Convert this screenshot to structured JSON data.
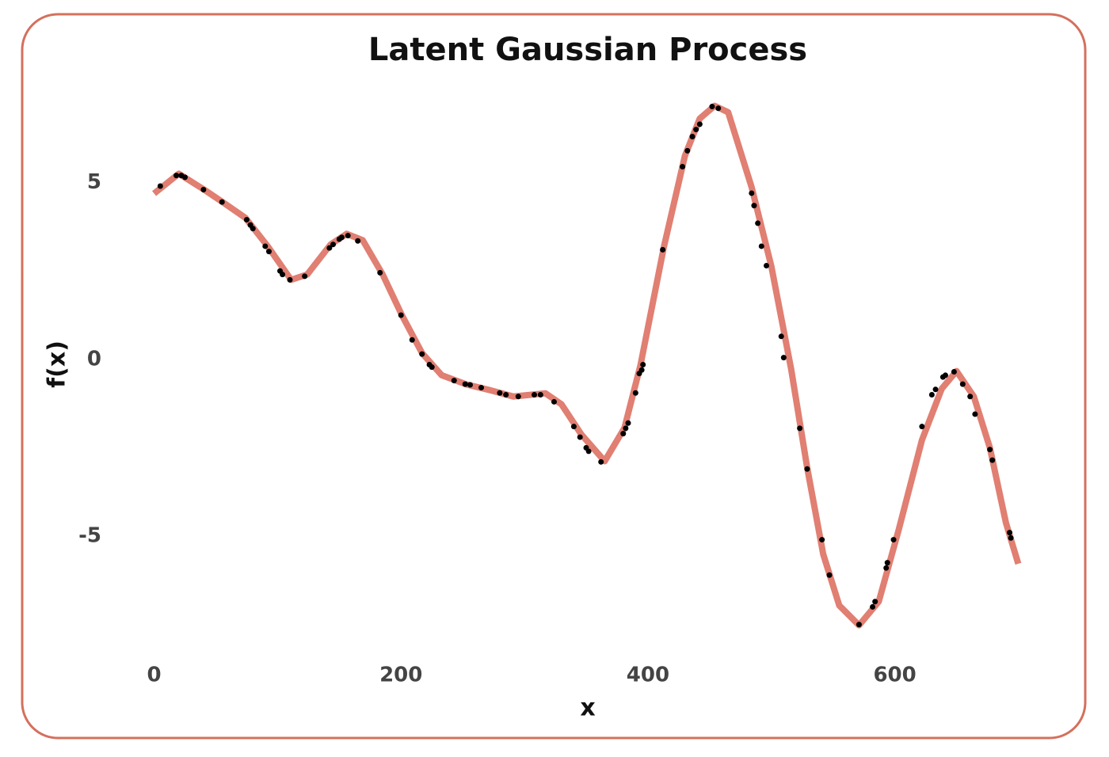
{
  "chart_data": {
    "type": "line",
    "title": "Latent Gaussian Process",
    "x_label": "x",
    "y_label": "f(x)",
    "xlim": [
      -35,
      735
    ],
    "ylim": [
      -8.2,
      7.7
    ],
    "xticks": [
      0,
      200,
      400,
      600
    ],
    "yticks": [
      -5,
      0,
      5
    ],
    "grid": false,
    "frame_color": "#d4705e",
    "series": [
      {
        "type": "line",
        "color": "#e07f72",
        "x": [
          0,
          20,
          40.5,
          55,
          74,
          92,
          111,
          124,
          143,
          156,
          169,
          185,
          201,
          217,
          233,
          253,
          272,
          291,
          317,
          330,
          346,
          365,
          381,
          394,
          413,
          430,
          442,
          454,
          465,
          484,
          500,
          516,
          529,
          542,
          555,
          571,
          587,
          603,
          622,
          638,
          650,
          664,
          677,
          690,
          700
        ],
        "values": [
          4.69,
          5.25,
          4.8,
          4.46,
          4.0,
          3.2,
          2.25,
          2.4,
          3.25,
          3.55,
          3.37,
          2.41,
          1.23,
          0.18,
          -0.45,
          -0.71,
          -0.87,
          -1.05,
          -0.96,
          -1.27,
          -2.12,
          -2.88,
          -1.94,
          -0.16,
          3.19,
          5.76,
          6.81,
          7.17,
          6.99,
          4.87,
          2.63,
          -0.27,
          -3.06,
          -5.51,
          -6.96,
          -7.52,
          -6.85,
          -4.84,
          -2.28,
          -0.83,
          -0.33,
          -1.05,
          -2.5,
          -4.62,
          -5.78
        ]
      },
      {
        "type": "scatter",
        "color": "#000000",
        "x": [
          5,
          18,
          22,
          25,
          40,
          55,
          75,
          78,
          80,
          90,
          93,
          102,
          104,
          110,
          122,
          142,
          145,
          150,
          152,
          157,
          165,
          183,
          200,
          209,
          217,
          223,
          225,
          243,
          252,
          256,
          265,
          280,
          285,
          295,
          308,
          313,
          324,
          340,
          345,
          350,
          352,
          362,
          380,
          382,
          384,
          390,
          393,
          395,
          396,
          412,
          428,
          432,
          436,
          439,
          442,
          452,
          457,
          484,
          486,
          489,
          492,
          496,
          508,
          510,
          523,
          529,
          541,
          547,
          571,
          582,
          584,
          593,
          594,
          599,
          622,
          630,
          633,
          639,
          641,
          648,
          655,
          661,
          665,
          677,
          679,
          693,
          694
        ],
        "values": [
          4.9,
          5.2,
          5.2,
          5.15,
          4.8,
          4.45,
          3.95,
          3.8,
          3.7,
          3.2,
          3.05,
          2.5,
          2.4,
          2.25,
          2.35,
          3.15,
          3.25,
          3.4,
          3.45,
          3.5,
          3.35,
          2.45,
          1.25,
          0.55,
          0.15,
          -0.15,
          -0.22,
          -0.6,
          -0.7,
          -0.72,
          -0.8,
          -0.95,
          -1.0,
          -1.05,
          -1.0,
          -1.0,
          -1.2,
          -1.9,
          -2.2,
          -2.5,
          -2.6,
          -2.9,
          -2.1,
          -1.95,
          -1.8,
          -0.95,
          -0.4,
          -0.3,
          -0.15,
          3.1,
          5.45,
          5.9,
          6.3,
          6.5,
          6.65,
          7.15,
          7.1,
          4.7,
          4.35,
          3.85,
          3.2,
          2.65,
          0.65,
          0.05,
          -1.95,
          -3.1,
          -5.1,
          -6.1,
          -7.5,
          -7.0,
          -6.85,
          -5.9,
          -5.75,
          -5.1,
          -1.9,
          -1.0,
          -0.85,
          -0.5,
          -0.45,
          -0.35,
          -0.7,
          -1.05,
          -1.55,
          -2.55,
          -2.85,
          -4.9,
          -5.05
        ]
      }
    ]
  }
}
